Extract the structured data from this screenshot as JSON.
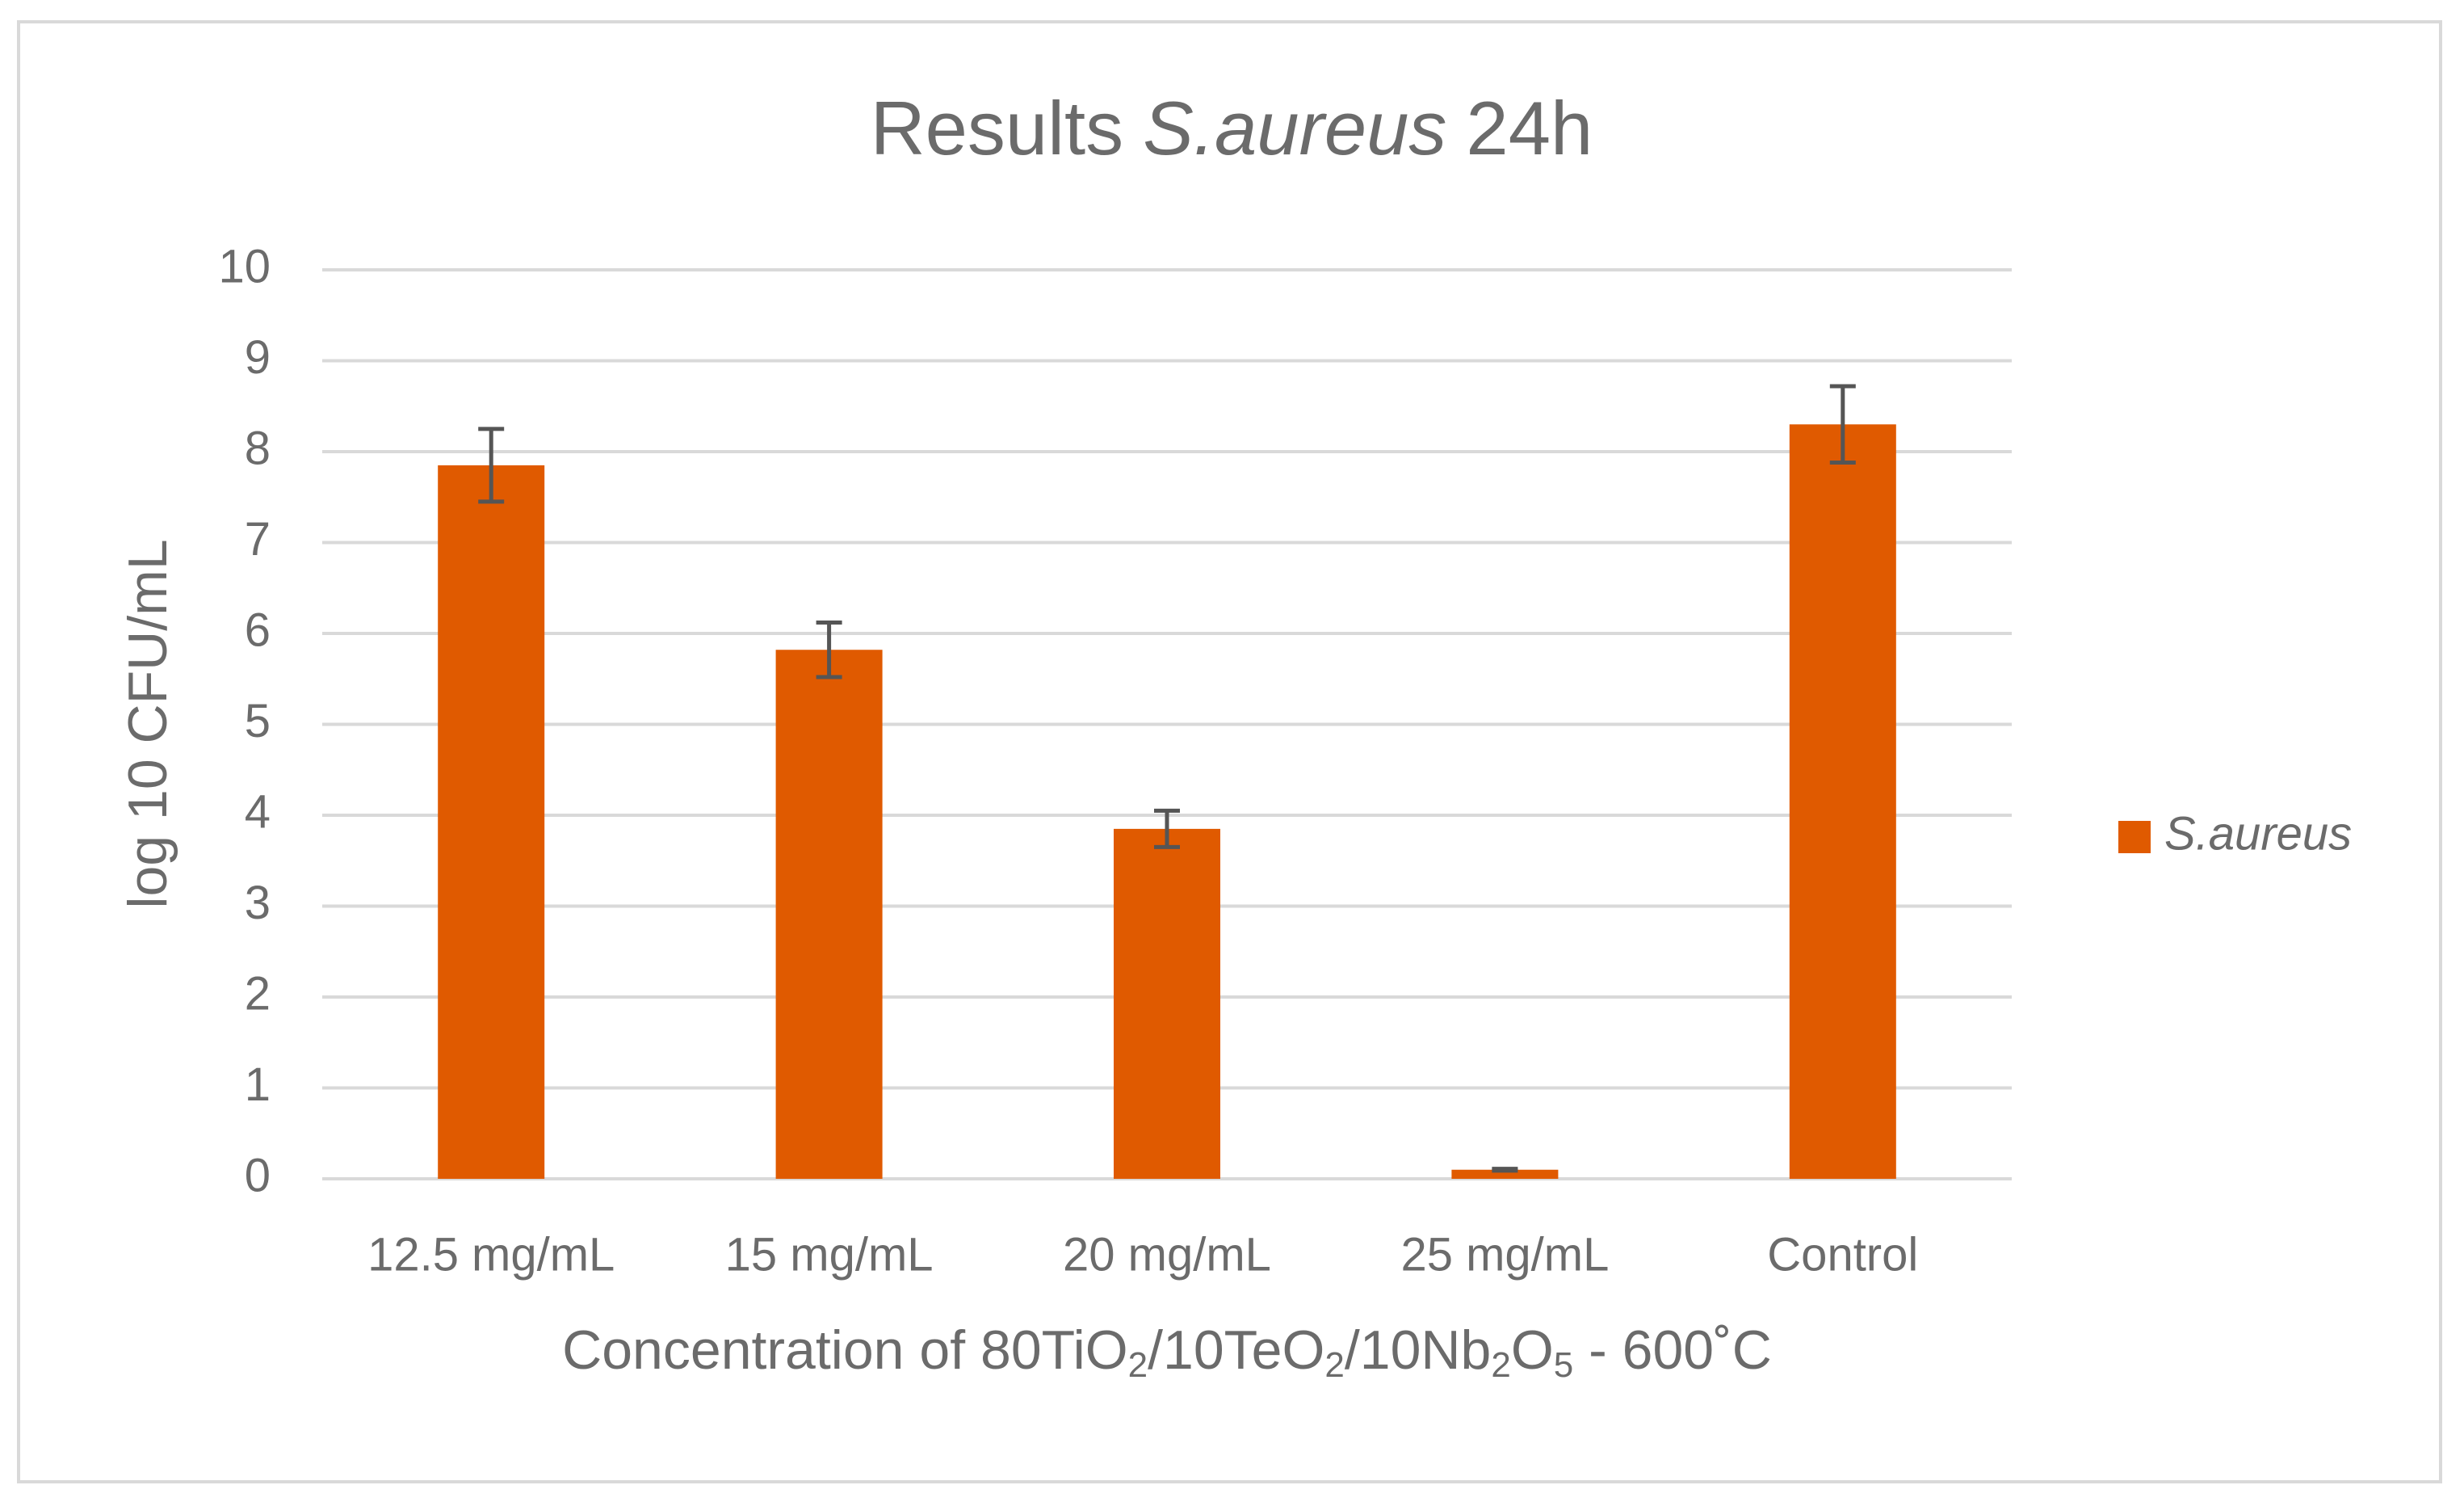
{
  "chart_data": {
    "type": "bar",
    "title": [
      "Results",
      "S.aureus",
      "24h"
    ],
    "ylabel": "log 10 CFU/mL",
    "xlabel": [
      "Concentration of 80TiO",
      "2",
      "/10TeO",
      "2",
      "/10Nb",
      "2",
      "O",
      "5",
      " - 600˚C"
    ],
    "categories": [
      "12.5 mg/mL",
      "15 mg/mL",
      "20 mg/mL",
      "25 mg/mL",
      "Control"
    ],
    "series": [
      {
        "name": "S.aureus",
        "color": "#e05a00",
        "values": [
          7.85,
          5.82,
          3.85,
          0.1,
          8.3
        ],
        "errors": [
          0.4,
          0.3,
          0.2,
          0.01,
          0.42
        ]
      }
    ],
    "ylim": [
      0,
      10
    ],
    "yticks": [
      0,
      1,
      2,
      3,
      4,
      5,
      6,
      7,
      8,
      9,
      10
    ],
    "grid": true,
    "legend": "right"
  }
}
